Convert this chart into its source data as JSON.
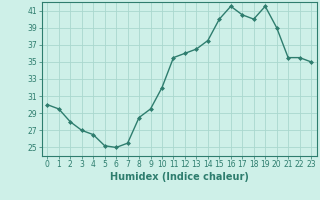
{
  "x": [
    0,
    1,
    2,
    3,
    4,
    5,
    6,
    7,
    8,
    9,
    10,
    11,
    12,
    13,
    14,
    15,
    16,
    17,
    18,
    19,
    20,
    21,
    22,
    23
  ],
  "y": [
    30,
    29.5,
    28,
    27,
    26.5,
    25.2,
    25,
    25.5,
    28.5,
    29.5,
    32,
    35.5,
    36,
    36.5,
    37.5,
    40,
    41.5,
    40.5,
    40,
    41.5,
    39,
    35.5,
    35.5,
    35
  ],
  "line_color": "#2e7d6e",
  "marker": "D",
  "marker_size": 2.0,
  "background_color": "#cef0e8",
  "grid_color": "#aad8ce",
  "xlabel": "Humidex (Indice chaleur)",
  "ylim": [
    24,
    42
  ],
  "xlim": [
    -0.5,
    23.5
  ],
  "yticks": [
    25,
    27,
    29,
    31,
    33,
    35,
    37,
    39,
    41
  ],
  "xticks": [
    0,
    1,
    2,
    3,
    4,
    5,
    6,
    7,
    8,
    9,
    10,
    11,
    12,
    13,
    14,
    15,
    16,
    17,
    18,
    19,
    20,
    21,
    22,
    23
  ],
  "tick_color": "#2e7d6e",
  "label_fontsize": 5.5,
  "xlabel_fontsize": 7,
  "line_width": 1.0
}
